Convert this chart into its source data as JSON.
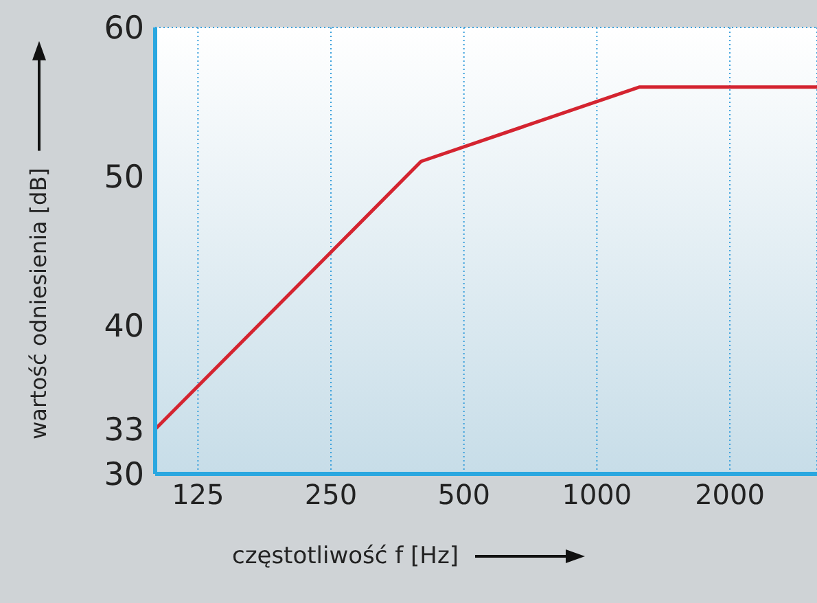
{
  "chart_data": {
    "type": "line",
    "xlabel": "częstotliwość f [Hz]",
    "ylabel": "wartość odniesienia [dB]",
    "x": [
      100,
      400,
      1250,
      3150
    ],
    "series": [
      {
        "color": "#d42430",
        "values": [
          33,
          51,
          56,
          56
        ]
      }
    ],
    "log": "x",
    "xlim": [
      100,
      3150
    ],
    "xticks": [
      125,
      250,
      500,
      1000,
      2000
    ],
    "ylim": [
      30,
      60
    ],
    "yticks": [
      30,
      33,
      40,
      50,
      60
    ],
    "grid": true,
    "marker": "none",
    "line_style": "solid"
  }
}
